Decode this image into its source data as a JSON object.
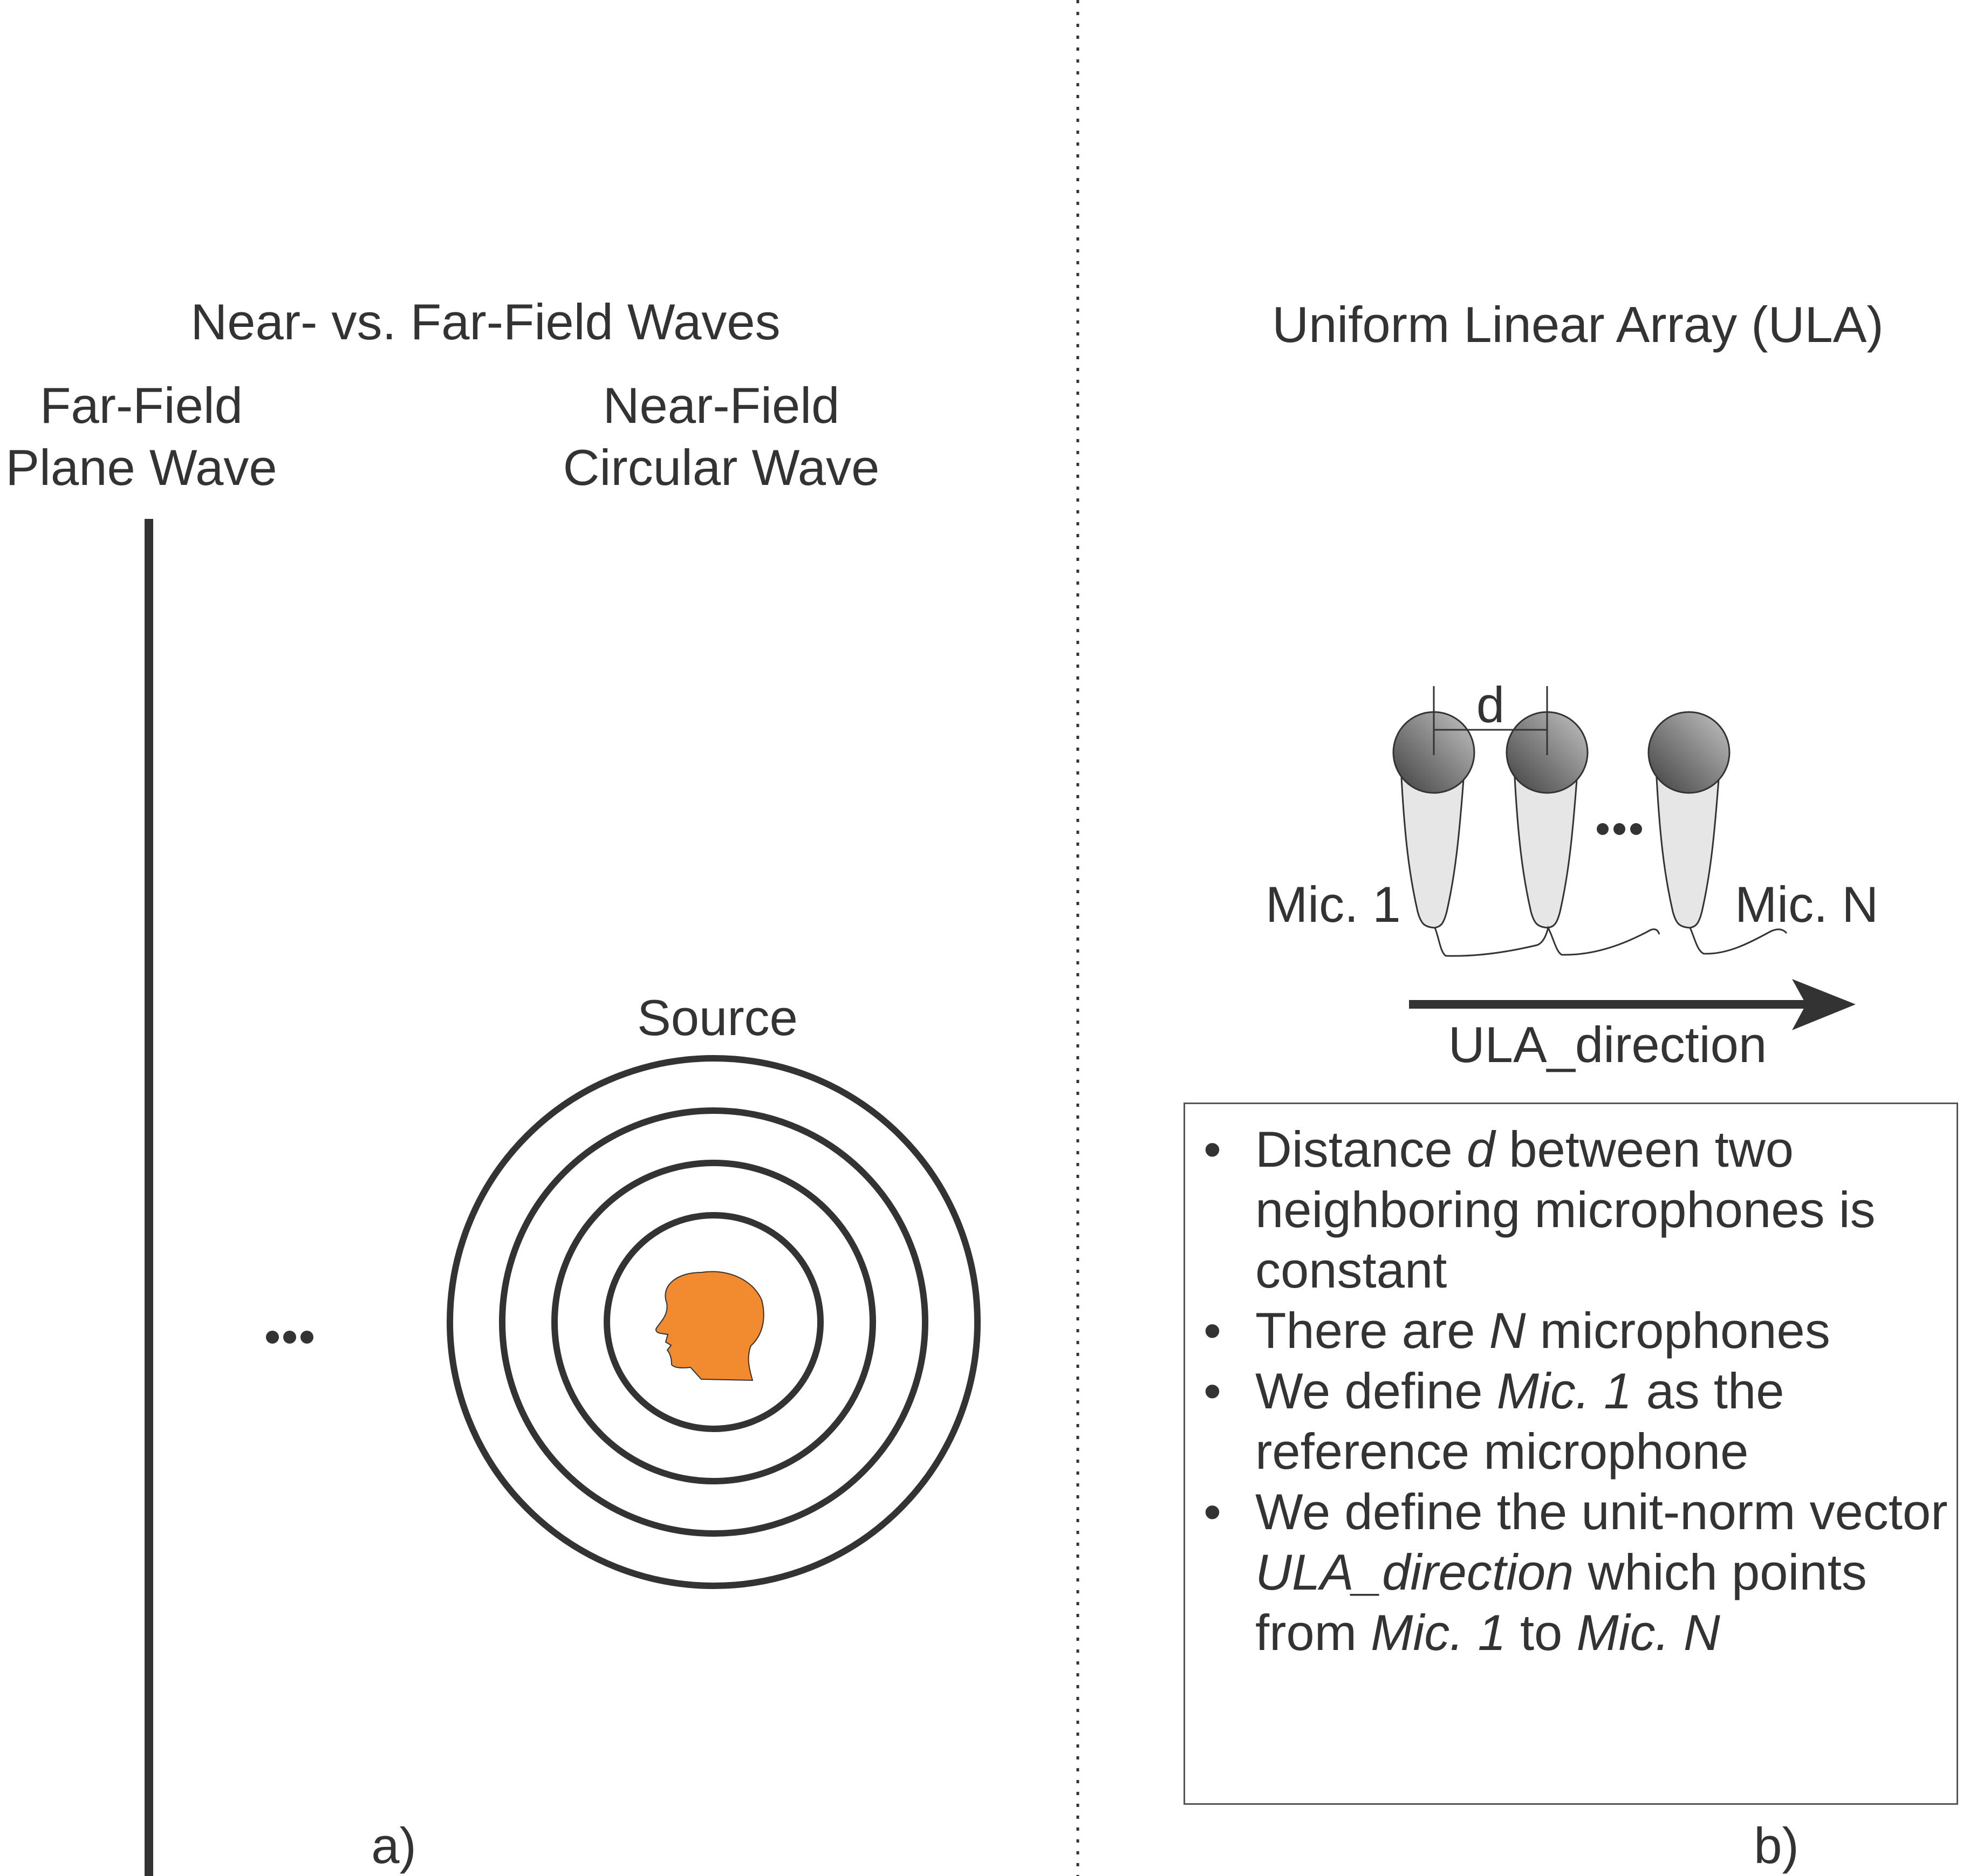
{
  "colors": {
    "ink": "#333333",
    "head": "#f28a30",
    "mic_body": "#e6e6e6",
    "mic_head_dark": "#4a4a4a",
    "mic_head_light": "#bdbdbd"
  },
  "panel_a": {
    "title": "Near- vs. Far-Field Waves",
    "far_field_label_line1": "Far-Field",
    "far_field_label_line2": "Plane Wave",
    "near_field_label_line1": "Near-Field",
    "near_field_label_line2": "Circular Wave",
    "source_label": "Source",
    "source_icon": "head-silhouette-icon",
    "wave_ring_count": 4,
    "panel_tag": "a)"
  },
  "panel_b": {
    "title": "Uniform Linear Array (ULA)",
    "spacing_label": "d",
    "mic_first_label": "Mic. 1",
    "mic_last_label": "Mic. N",
    "mic_icon": "microphone-icon",
    "direction_label": "ULA_direction",
    "panel_tag": "b)",
    "bullets": [
      {
        "parts": [
          {
            "t": "Distance ",
            "i": false
          },
          {
            "t": "d",
            "i": true
          },
          {
            "t": " between two neighboring microphones is constant",
            "i": false
          }
        ]
      },
      {
        "parts": [
          {
            "t": "There are ",
            "i": false
          },
          {
            "t": "N",
            "i": true
          },
          {
            "t": " microphones",
            "i": false
          }
        ]
      },
      {
        "parts": [
          {
            "t": "We define ",
            "i": false
          },
          {
            "t": "Mic. 1",
            "i": true
          },
          {
            "t": " as the reference microphone",
            "i": false
          }
        ]
      },
      {
        "parts": [
          {
            "t": "We define the unit-norm vector ",
            "i": false
          },
          {
            "t": "ULA_direction",
            "i": true
          },
          {
            "t": " which points from ",
            "i": false
          },
          {
            "t": "Mic. 1",
            "i": true
          },
          {
            "t": " to ",
            "i": false
          },
          {
            "t": "Mic. N",
            "i": true
          }
        ]
      }
    ],
    "bullet_symbol": "•"
  }
}
